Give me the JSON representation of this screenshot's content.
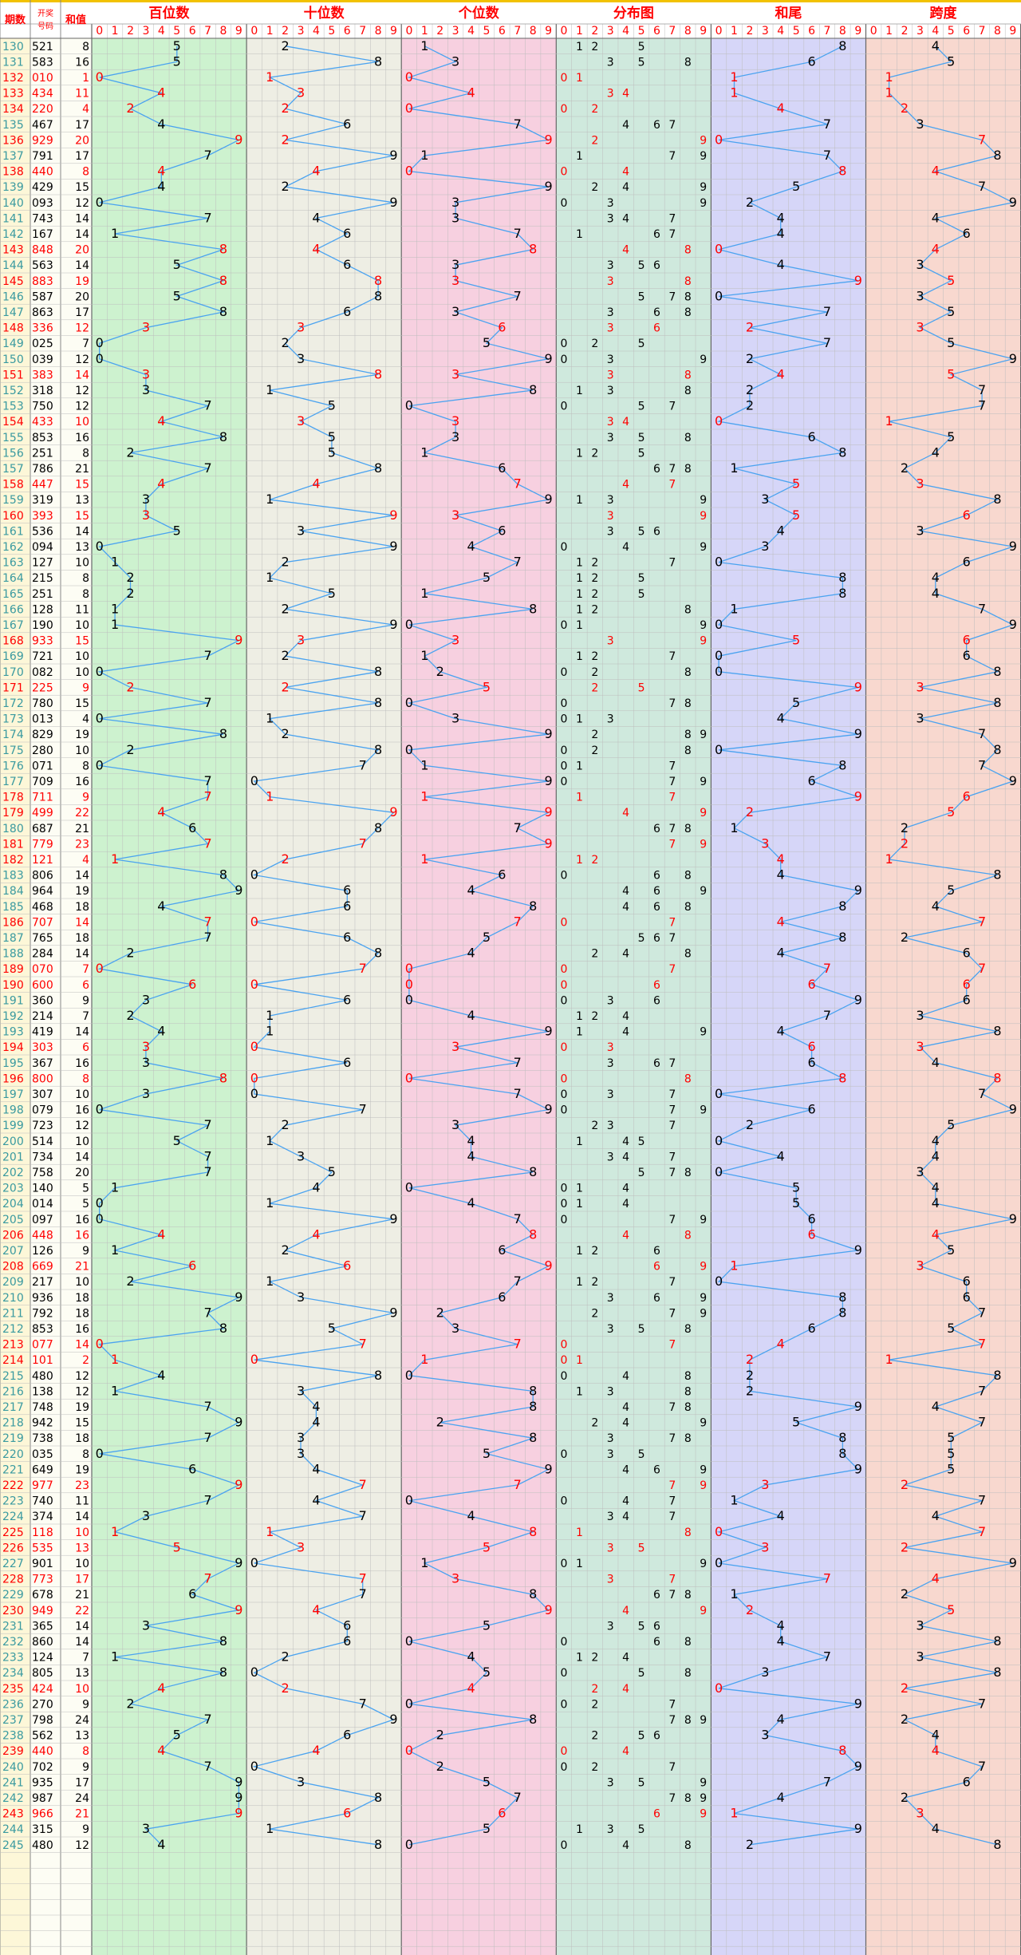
{
  "headers": {
    "period": "期数",
    "draw_line1": "开奖",
    "draw_line2": "号码",
    "sum": "和值"
  },
  "sections": [
    {
      "key": "hundreds",
      "title": "百位数"
    },
    {
      "key": "tens",
      "title": "十位数"
    },
    {
      "key": "units",
      "title": "个位数"
    },
    {
      "key": "distribution",
      "title": "分布图"
    },
    {
      "key": "sum_tail",
      "title": "和尾"
    },
    {
      "key": "span",
      "title": "跨度"
    }
  ],
  "digit_labels": [
    "0",
    "1",
    "2",
    "3",
    "4",
    "5",
    "6",
    "7",
    "8",
    "9"
  ],
  "colors": {
    "header_text": "#ff0000",
    "period_normal": "#3a9aa0",
    "red_mark": "#ff0000",
    "black_mark": "#000000",
    "line": "#4aa3f0",
    "hundreds_bg": "#cdf2cf",
    "tens_bg": "#eeeee4",
    "units_bg": "#f7d0e0",
    "distribution_bg": "#cfe9dd",
    "sum_tail_bg": "#d6d6f8",
    "span_bg": "#f8d8cf"
  },
  "chart_data": {
    "type": "table",
    "columns": [
      "期数",
      "开奖号码",
      "和值",
      "百位数",
      "十位数",
      "个位数",
      "分布图",
      "和尾",
      "跨度"
    ],
    "rows": [
      {
        "period": "130",
        "number": "521",
        "sum": "8"
      },
      {
        "period": "131",
        "number": "583",
        "sum": "16"
      },
      {
        "period": "132",
        "number": "010",
        "sum": "1"
      },
      {
        "period": "133",
        "number": "434",
        "sum": "11"
      },
      {
        "period": "134",
        "number": "220",
        "sum": "4"
      },
      {
        "period": "135",
        "number": "467",
        "sum": "17"
      },
      {
        "period": "136",
        "number": "929",
        "sum": "20"
      },
      {
        "period": "137",
        "number": "791",
        "sum": "17"
      },
      {
        "period": "138",
        "number": "440",
        "sum": "8"
      },
      {
        "period": "139",
        "number": "429",
        "sum": "15"
      },
      {
        "period": "140",
        "number": "093",
        "sum": "12"
      },
      {
        "period": "141",
        "number": "743",
        "sum": "14"
      },
      {
        "period": "142",
        "number": "167",
        "sum": "14"
      },
      {
        "period": "143",
        "number": "848",
        "sum": "20"
      },
      {
        "period": "144",
        "number": "563",
        "sum": "14"
      },
      {
        "period": "145",
        "number": "883",
        "sum": "19"
      },
      {
        "period": "146",
        "number": "587",
        "sum": "20"
      },
      {
        "period": "147",
        "number": "863",
        "sum": "17"
      },
      {
        "period": "148",
        "number": "336",
        "sum": "12"
      },
      {
        "period": "149",
        "number": "025",
        "sum": "7"
      },
      {
        "period": "150",
        "number": "039",
        "sum": "12"
      },
      {
        "period": "151",
        "number": "383",
        "sum": "14"
      },
      {
        "period": "152",
        "number": "318",
        "sum": "12"
      },
      {
        "period": "153",
        "number": "750",
        "sum": "12"
      },
      {
        "period": "154",
        "number": "433",
        "sum": "10"
      },
      {
        "period": "155",
        "number": "853",
        "sum": "16"
      },
      {
        "period": "156",
        "number": "251",
        "sum": "8"
      },
      {
        "period": "157",
        "number": "786",
        "sum": "21"
      },
      {
        "period": "158",
        "number": "447",
        "sum": "15"
      },
      {
        "period": "159",
        "number": "319",
        "sum": "13"
      },
      {
        "period": "160",
        "number": "393",
        "sum": "15"
      },
      {
        "period": "161",
        "number": "536",
        "sum": "14"
      },
      {
        "period": "162",
        "number": "094",
        "sum": "13"
      },
      {
        "period": "163",
        "number": "127",
        "sum": "10"
      },
      {
        "period": "164",
        "number": "215",
        "sum": "8"
      },
      {
        "period": "165",
        "number": "251",
        "sum": "8"
      },
      {
        "period": "166",
        "number": "128",
        "sum": "11"
      },
      {
        "period": "167",
        "number": "190",
        "sum": "10"
      },
      {
        "period": "168",
        "number": "933",
        "sum": "15"
      },
      {
        "period": "169",
        "number": "721",
        "sum": "10"
      },
      {
        "period": "170",
        "number": "082",
        "sum": "10"
      },
      {
        "period": "171",
        "number": "225",
        "sum": "9"
      },
      {
        "period": "172",
        "number": "780",
        "sum": "15"
      },
      {
        "period": "173",
        "number": "013",
        "sum": "4"
      },
      {
        "period": "174",
        "number": "829",
        "sum": "19"
      },
      {
        "period": "175",
        "number": "280",
        "sum": "10"
      },
      {
        "period": "176",
        "number": "071",
        "sum": "8"
      },
      {
        "period": "177",
        "number": "709",
        "sum": "16"
      },
      {
        "period": "178",
        "number": "711",
        "sum": "9"
      },
      {
        "period": "179",
        "number": "499",
        "sum": "22"
      },
      {
        "period": "180",
        "number": "687",
        "sum": "21"
      },
      {
        "period": "181",
        "number": "779",
        "sum": "23"
      },
      {
        "period": "182",
        "number": "121",
        "sum": "4"
      },
      {
        "period": "183",
        "number": "806",
        "sum": "14"
      },
      {
        "period": "184",
        "number": "964",
        "sum": "19"
      },
      {
        "period": "185",
        "number": "468",
        "sum": "18"
      },
      {
        "period": "186",
        "number": "707",
        "sum": "14"
      },
      {
        "period": "187",
        "number": "765",
        "sum": "18"
      },
      {
        "period": "188",
        "number": "284",
        "sum": "14"
      },
      {
        "period": "189",
        "number": "070",
        "sum": "7"
      },
      {
        "period": "190",
        "number": "600",
        "sum": "6"
      },
      {
        "period": "191",
        "number": "360",
        "sum": "9"
      },
      {
        "period": "192",
        "number": "214",
        "sum": "7"
      },
      {
        "period": "193",
        "number": "419",
        "sum": "14"
      },
      {
        "period": "194",
        "number": "303",
        "sum": "6"
      },
      {
        "period": "195",
        "number": "367",
        "sum": "16"
      },
      {
        "period": "196",
        "number": "800",
        "sum": "8"
      },
      {
        "period": "197",
        "number": "307",
        "sum": "10"
      },
      {
        "period": "198",
        "number": "079",
        "sum": "16"
      },
      {
        "period": "199",
        "number": "723",
        "sum": "12"
      },
      {
        "period": "200",
        "number": "514",
        "sum": "10"
      },
      {
        "period": "201",
        "number": "734",
        "sum": "14"
      },
      {
        "period": "202",
        "number": "758",
        "sum": "20"
      },
      {
        "period": "203",
        "number": "140",
        "sum": "5"
      },
      {
        "period": "204",
        "number": "014",
        "sum": "5"
      },
      {
        "period": "205",
        "number": "097",
        "sum": "16"
      },
      {
        "period": "206",
        "number": "448",
        "sum": "16"
      },
      {
        "period": "207",
        "number": "126",
        "sum": "9"
      },
      {
        "period": "208",
        "number": "669",
        "sum": "21"
      },
      {
        "period": "209",
        "number": "217",
        "sum": "10"
      },
      {
        "period": "210",
        "number": "936",
        "sum": "18"
      },
      {
        "period": "211",
        "number": "792",
        "sum": "18"
      },
      {
        "period": "212",
        "number": "853",
        "sum": "16"
      },
      {
        "period": "213",
        "number": "077",
        "sum": "14"
      },
      {
        "period": "214",
        "number": "101",
        "sum": "2"
      },
      {
        "period": "215",
        "number": "480",
        "sum": "12"
      },
      {
        "period": "216",
        "number": "138",
        "sum": "12"
      },
      {
        "period": "217",
        "number": "748",
        "sum": "19"
      },
      {
        "period": "218",
        "number": "942",
        "sum": "15"
      },
      {
        "period": "219",
        "number": "738",
        "sum": "18"
      },
      {
        "period": "220",
        "number": "035",
        "sum": "8"
      },
      {
        "period": "221",
        "number": "649",
        "sum": "19"
      },
      {
        "period": "222",
        "number": "977",
        "sum": "23"
      },
      {
        "period": "223",
        "number": "740",
        "sum": "11"
      },
      {
        "period": "224",
        "number": "374",
        "sum": "14"
      },
      {
        "period": "225",
        "number": "118",
        "sum": "10"
      },
      {
        "period": "226",
        "number": "535",
        "sum": "13"
      },
      {
        "period": "227",
        "number": "901",
        "sum": "10"
      },
      {
        "period": "228",
        "number": "773",
        "sum": "17"
      },
      {
        "period": "229",
        "number": "678",
        "sum": "21"
      },
      {
        "period": "230",
        "number": "949",
        "sum": "22"
      },
      {
        "period": "231",
        "number": "365",
        "sum": "14"
      },
      {
        "period": "232",
        "number": "860",
        "sum": "14"
      },
      {
        "period": "233",
        "number": "124",
        "sum": "7"
      },
      {
        "period": "234",
        "number": "805",
        "sum": "13"
      },
      {
        "period": "235",
        "number": "424",
        "sum": "10"
      },
      {
        "period": "236",
        "number": "270",
        "sum": "9"
      },
      {
        "period": "237",
        "number": "798",
        "sum": "24"
      },
      {
        "period": "238",
        "number": "562",
        "sum": "13"
      },
      {
        "period": "239",
        "number": "440",
        "sum": "8"
      },
      {
        "period": "240",
        "number": "702",
        "sum": "9"
      },
      {
        "period": "241",
        "number": "935",
        "sum": "17"
      },
      {
        "period": "242",
        "number": "987",
        "sum": "24"
      },
      {
        "period": "243",
        "number": "966",
        "sum": "21"
      },
      {
        "period": "244",
        "number": "315",
        "sum": "9"
      },
      {
        "period": "245",
        "number": "480",
        "sum": "12"
      }
    ]
  }
}
